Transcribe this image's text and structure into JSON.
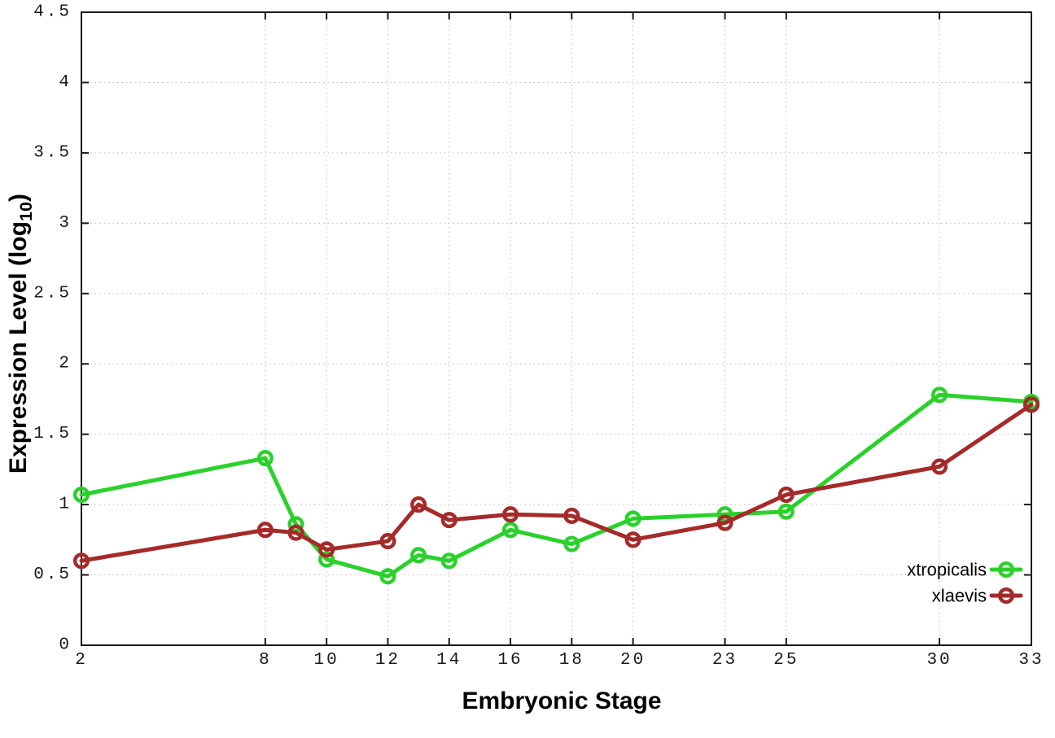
{
  "chart_data": {
    "type": "line",
    "title": "",
    "xlabel": "Embryonic Stage",
    "ylabel": "Expression Level (log10)",
    "ylabel_parts": {
      "prefix": "Expression Level (log",
      "sub": "10",
      "suffix": ")"
    },
    "xlim": [
      2,
      33
    ],
    "ylim": [
      0,
      4.5
    ],
    "grid": true,
    "grid_style": "dotted",
    "grid_color": "#bbbbbb",
    "legend_position": "inside-bottom-right",
    "x_ticks": [
      2,
      8,
      10,
      12,
      14,
      16,
      18,
      20,
      23,
      25,
      30,
      33
    ],
    "x_tick_labels": [
      "2",
      "8",
      "10",
      "12",
      "14",
      "16",
      "18",
      "20",
      "23",
      "25",
      "30",
      "33"
    ],
    "y_ticks": [
      0,
      0.5,
      1,
      1.5,
      2,
      2.5,
      3,
      3.5,
      4,
      4.5
    ],
    "y_tick_labels": [
      "0",
      "0.5",
      "1",
      "1.5",
      "2",
      "2.5",
      "3",
      "3.5",
      "4",
      "4.5"
    ],
    "x": [
      2,
      8,
      9,
      10,
      12,
      13,
      14,
      16,
      18,
      20,
      23,
      25,
      30,
      33
    ],
    "series": [
      {
        "name": "xtropicalis",
        "color": "#2BD12B",
        "marker": "open-circle",
        "values": [
          1.07,
          1.33,
          0.86,
          0.61,
          0.49,
          0.64,
          0.6,
          0.82,
          0.72,
          0.9,
          0.93,
          0.95,
          1.78,
          1.73
        ]
      },
      {
        "name": "xlaevis",
        "color": "#A52A2A",
        "marker": "open-circle",
        "values": [
          0.6,
          0.82,
          0.8,
          0.68,
          0.74,
          1.0,
          0.89,
          0.93,
          0.92,
          0.75,
          0.87,
          1.07,
          1.27,
          1.71
        ]
      }
    ]
  }
}
